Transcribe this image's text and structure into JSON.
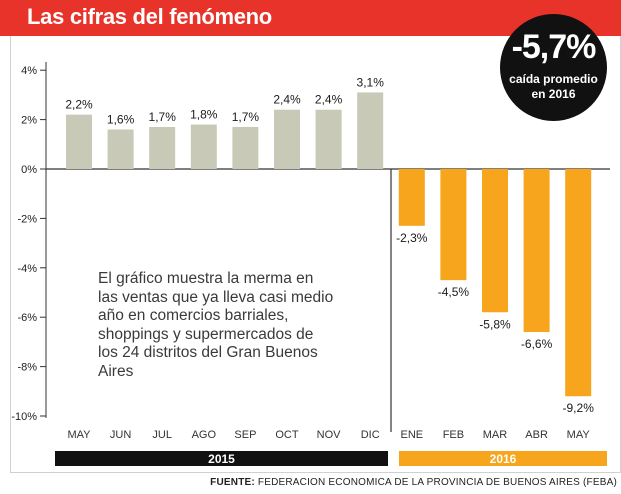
{
  "header": {
    "title": "Las cifras del fenómeno"
  },
  "badge": {
    "value": "-5,7%",
    "caption_line1": "caída promedio",
    "caption_line2": "en 2016"
  },
  "description": "El gráfico muestra la merma en las ventas que ya lleva casi medio año en comercios barriales, shoppings y supermercados de los 24 distritos del Gran Buenos Aires",
  "source": {
    "label": "FUENTE:",
    "text": "FEDERACION ECONOMICA DE LA PROVINCIA DE BUENOS AIRES (FEBA)"
  },
  "colors": {
    "header": "#e8332a",
    "bar_2015": "#c9c9b8",
    "bar_2016": "#f7a51c",
    "year_2015": "#111111",
    "year_2016": "#f7a51c"
  },
  "chart_data": {
    "type": "bar",
    "title": "Las cifras del fenómeno",
    "categories": [
      "MAY",
      "JUN",
      "JUL",
      "AGO",
      "SEP",
      "OCT",
      "NOV",
      "DIC",
      "ENE",
      "FEB",
      "MAR",
      "ABR",
      "MAY"
    ],
    "values": [
      2.2,
      1.6,
      1.7,
      1.8,
      1.7,
      2.4,
      2.4,
      3.1,
      -2.3,
      -4.5,
      -5.8,
      -6.6,
      -9.2
    ],
    "data_labels": [
      "2,2%",
      "1,6%",
      "1,7%",
      "1,8%",
      "1,7%",
      "2,4%",
      "2,4%",
      "3,1%",
      "-2,3%",
      "-4,5%",
      "-5,8%",
      "-6,6%",
      "-9,2%"
    ],
    "years": [
      {
        "label": "2015",
        "start": 0,
        "end": 7
      },
      {
        "label": "2016",
        "start": 8,
        "end": 12
      }
    ],
    "ylim": [
      -10,
      4
    ],
    "yticks": [
      4,
      2,
      0,
      -2,
      -4,
      -6,
      -8,
      -10
    ],
    "ytick_labels": [
      "4%",
      "2%",
      "0%",
      "-2%",
      "-4%",
      "-6%",
      "-8%",
      "-10%"
    ],
    "grid": false,
    "xlabel": "",
    "ylabel": ""
  }
}
